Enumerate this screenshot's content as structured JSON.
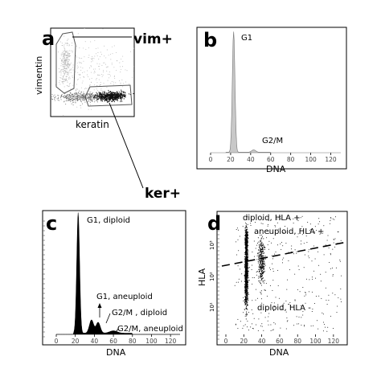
{
  "chart_data": [
    {
      "panel": "a",
      "type": "scatter",
      "xlabel": "keratin",
      "ylabel": "vimentin",
      "annotations": [
        "vim+",
        "ker+"
      ],
      "gates": [
        "vim+",
        "ker+"
      ]
    },
    {
      "panel": "b",
      "type": "area",
      "xlabel": "DNA",
      "xlim": [
        0,
        130
      ],
      "xticks": [
        0,
        20,
        40,
        60,
        80,
        100,
        120
      ],
      "fill_color": "#c8c8c8",
      "peaks": [
        {
          "label": "G1",
          "x": 23,
          "relative_height": 1.0
        },
        {
          "label": "G2/M",
          "x": 43,
          "relative_height": 0.02
        }
      ]
    },
    {
      "panel": "c",
      "type": "area",
      "xlabel": "DNA",
      "xlim": [
        0,
        130
      ],
      "xticks": [
        0,
        20,
        40,
        60,
        80,
        100,
        120
      ],
      "fill_color": "#000000",
      "peaks": [
        {
          "label": "G1, diploid",
          "x": 23,
          "relative_height": 1.0
        },
        {
          "label": "G1, aneuploid",
          "x": 37,
          "relative_height": 0.11
        },
        {
          "label": "G2/M , diploid",
          "x": 44,
          "relative_height": 0.09
        },
        {
          "label": "G2/M, aneuploid",
          "x": 60,
          "relative_height": 0.02
        }
      ]
    },
    {
      "panel": "d",
      "type": "scatter",
      "xlabel": "DNA",
      "ylabel": "HLA",
      "xlim": [
        0,
        130
      ],
      "xticks": [
        0,
        20,
        40,
        60,
        80,
        100,
        120
      ],
      "yscale": "log",
      "yticks": [
        "10¹",
        "10²",
        "10³"
      ],
      "annotations": [
        "diploid, HLA +",
        "aneuploid, HLA +",
        "diploid, HLA -"
      ],
      "divider": "dashed"
    }
  ],
  "panels": {
    "a": {
      "letter": "a",
      "xlabel": "keratin",
      "ylabel": "vimentin",
      "gate_top": "vim+",
      "gate_bottom": "ker+"
    },
    "b": {
      "letter": "b",
      "xlabel": "DNA",
      "peak1": "G1",
      "peak2": "G2/M"
    },
    "c": {
      "letter": "c",
      "xlabel": "DNA",
      "l1": "G1, diploid",
      "l2": "G1, aneuploid",
      "l3": "G2/M , diploid",
      "l4": "G2/M, aneuploid"
    },
    "d": {
      "letter": "d",
      "xlabel": "DNA",
      "ylabel": "HLA",
      "l1": "diploid, HLA +",
      "l2": "aneuploid, HLA +",
      "l3": "diploid, HLA -",
      "ytick1": "10¹",
      "ytick2": "10²",
      "ytick3": "10³"
    }
  },
  "xticks": [
    "0",
    "20",
    "40",
    "60",
    "80",
    "100",
    "120"
  ]
}
